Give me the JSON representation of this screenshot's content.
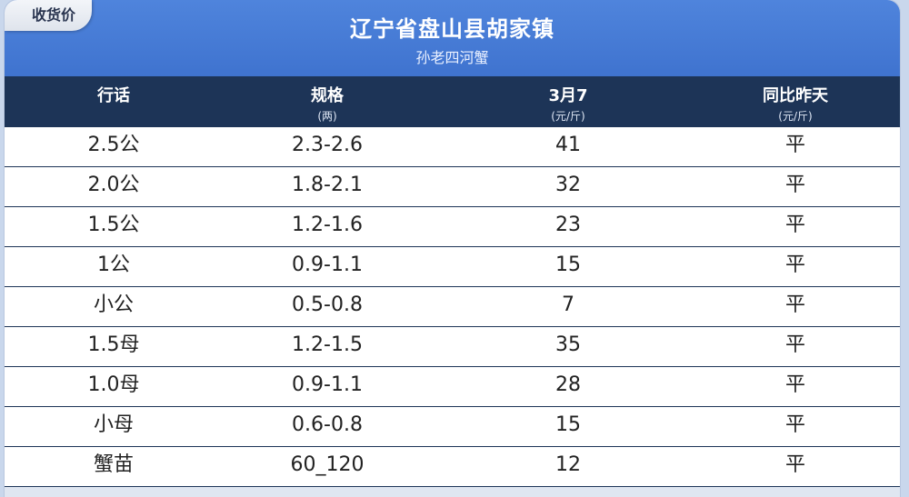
{
  "tag": "收货价",
  "title": "辽宁省盘山县胡家镇",
  "subtitle": "孙老四河蟹",
  "columns": [
    {
      "label": "行话",
      "unit": ""
    },
    {
      "label": "规格",
      "unit": "(两)"
    },
    {
      "label": "3月7",
      "unit": "(元/斤)"
    },
    {
      "label": "同比昨天",
      "unit": "(元/斤)"
    }
  ],
  "rows": [
    [
      "2.5公",
      "2.3-2.6",
      "41",
      "平"
    ],
    [
      "2.0公",
      "1.8-2.1",
      "32",
      "平"
    ],
    [
      "1.5公",
      "1.2-1.6",
      "23",
      "平"
    ],
    [
      "1公",
      "0.9-1.1",
      "15",
      "平"
    ],
    [
      "小公",
      "0.5-0.8",
      "7",
      "平"
    ],
    [
      "1.5母",
      "1.2-1.5",
      "35",
      "平"
    ],
    [
      "1.0母",
      "0.9-1.1",
      "28",
      "平"
    ],
    [
      "小母",
      "0.6-0.8",
      "15",
      "平"
    ],
    [
      "蟹苗",
      "60_120",
      "12",
      "平"
    ]
  ]
}
